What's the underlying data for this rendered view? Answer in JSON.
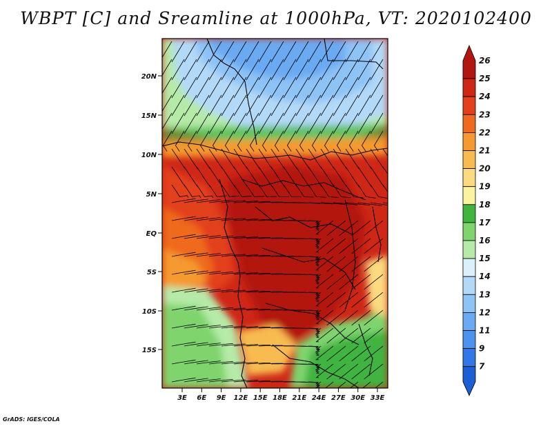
{
  "title": "WBPT [C] and Sreamline at 1000hPa, VT: 2020102400",
  "footer": "GrADS: IGES/COLA",
  "lat_ticks": [
    "20N",
    "15N",
    "10N",
    "5N",
    "EQ",
    "5S",
    "10S",
    "15S"
  ],
  "lon_ticks": [
    "3E",
    "6E",
    "9E",
    "12E",
    "15E",
    "18E",
    "21E",
    "24E",
    "27E",
    "30E",
    "33E"
  ],
  "colorbar": {
    "labels": [
      "7",
      "9",
      "11",
      "12",
      "13",
      "14",
      "15",
      "16",
      "17",
      "18",
      "19",
      "20",
      "21",
      "22",
      "23",
      "24",
      "25",
      "26"
    ],
    "colors": [
      "#1a5fd6",
      "#2f78e6",
      "#4a93ee",
      "#6aaaf3",
      "#8ec3f6",
      "#b3d9f8",
      "#daf0fb",
      "#b6eaa8",
      "#7fd46d",
      "#3fb43f",
      "#fbf3a0",
      "#fbdb80",
      "#f8bb50",
      "#f59a2e",
      "#ef6a1f",
      "#e3411b",
      "#cf2716",
      "#b31510"
    ]
  }
}
